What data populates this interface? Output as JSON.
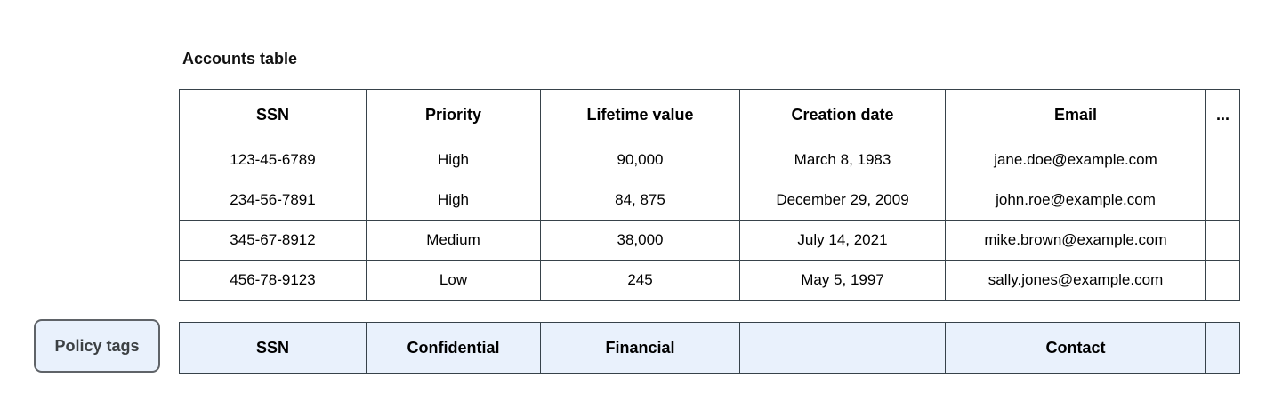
{
  "accounts_table": {
    "title": "Accounts table",
    "columns": [
      "SSN",
      "Priority",
      "Lifetime value",
      "Creation date",
      "Email",
      "..."
    ],
    "rows": [
      [
        "123-45-6789",
        "High",
        "90,000",
        "March 8, 1983",
        "jane.doe@example.com",
        ""
      ],
      [
        "234-56-7891",
        "High",
        "84, 875",
        "December 29, 2009",
        "john.roe@example.com",
        ""
      ],
      [
        "345-67-8912",
        "Medium",
        "38,000",
        "July 14, 2021",
        "mike.brown@example.com",
        ""
      ],
      [
        "456-78-9123",
        "Low",
        "245",
        "May 5, 1997",
        "sally.jones@example.com",
        ""
      ]
    ]
  },
  "policy_tags": {
    "button_label": "Policy tags",
    "cells": [
      "SSN",
      "Confidential",
      "Financial",
      "",
      "Contact",
      ""
    ]
  },
  "colors": {
    "table_border": "#37424a",
    "policy_row_fill": "#e9f1fc",
    "button_fill": "#e9f1fc",
    "button_border": "#5f6368",
    "button_text": "#3c4043",
    "text": "#000000",
    "background": "#ffffff"
  }
}
